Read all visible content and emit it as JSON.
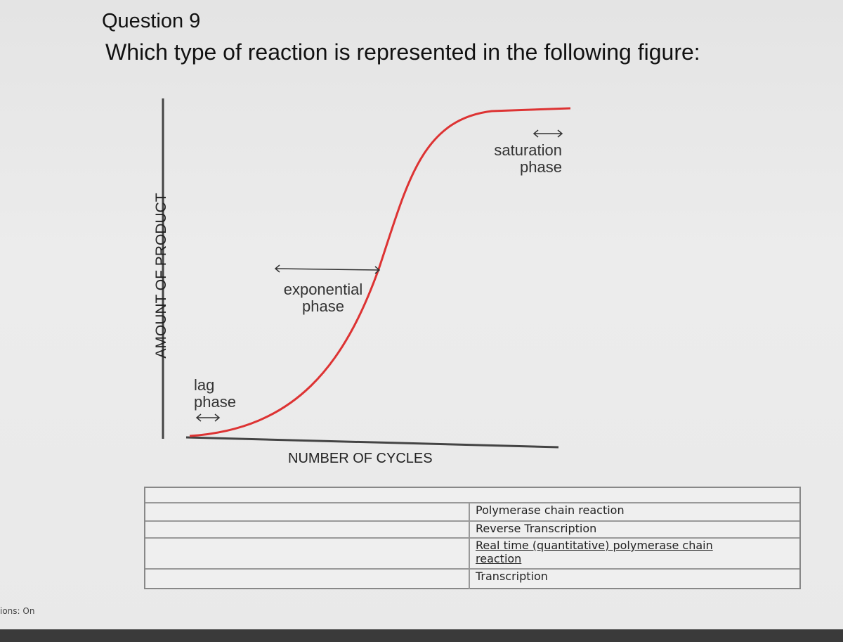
{
  "question": {
    "number": "Question 9",
    "text": "Which type of reaction is represented in the following figure:"
  },
  "figure": {
    "y_axis_label": "AMOUNT OF PRODUCT",
    "x_axis_label": "NUMBER OF CYCLES",
    "phases": [
      "lag phase",
      "exponential phase",
      "saturation phase"
    ]
  },
  "options": [
    "Polymerase chain reaction",
    "Reverse Transcription",
    "Real time (quantitative) polymerase chain reaction",
    "Transcription"
  ],
  "footer": "ions: On"
}
